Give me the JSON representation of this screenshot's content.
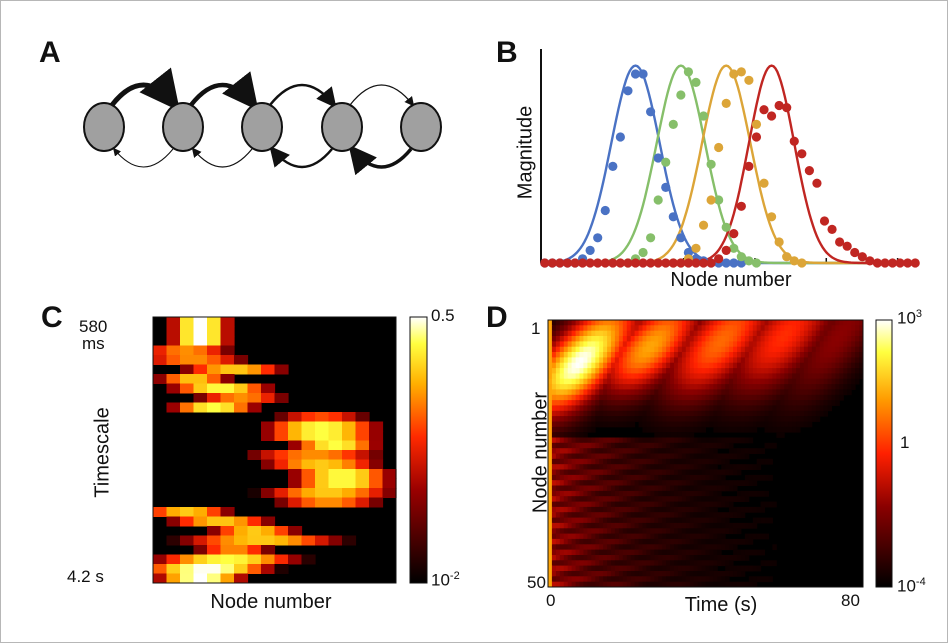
{
  "panels": {
    "a": {
      "letter": "A"
    },
    "b": {
      "letter": "B",
      "ylabel": "Magnitude",
      "xlabel": "Node number"
    },
    "c": {
      "letter": "C",
      "top_tick": "580",
      "top_tick_unit": "ms",
      "bottom_tick": "4.2 s",
      "ylabel": "Timescale",
      "xlabel": "Node number",
      "cbar_max": "0.5",
      "cbar_min_base": "10",
      "cbar_min_exp": "-2"
    },
    "d": {
      "letter": "D",
      "top_tick": "1",
      "bottom_tick": "50",
      "ylabel": "Node number",
      "xlabel": "Time (s)",
      "x_min": "0",
      "x_max": "80",
      "cbar_max_base": "10",
      "cbar_max_exp": "3",
      "cbar_mid": "1",
      "cbar_min_base": "10",
      "cbar_min_exp": "-4"
    }
  },
  "colors": {
    "blue": "#4a72c4",
    "green": "#86bf6a",
    "gold": "#dca538",
    "red": "#c02622"
  },
  "chart_data": [
    {
      "type": "scatter",
      "panel": "B",
      "xlabel": "Node number",
      "ylabel": "Magnitude",
      "note": "four bumps: dots = data, lines = gaussian fits",
      "series": [
        {
          "color": "blue",
          "peak_node": 13,
          "width": 3.2,
          "points": [
            [
              1,
              0
            ],
            [
              2,
              0
            ],
            [
              3,
              0
            ],
            [
              4,
              0
            ],
            [
              5,
              0
            ],
            [
              6,
              0.02
            ],
            [
              7,
              0.06
            ],
            [
              8,
              0.12
            ],
            [
              9,
              0.25
            ],
            [
              10,
              0.46
            ],
            [
              11,
              0.6
            ],
            [
              12,
              0.82
            ],
            [
              13,
              0.9
            ],
            [
              14,
              0.9
            ],
            [
              15,
              0.72
            ],
            [
              16,
              0.5
            ],
            [
              17,
              0.36
            ],
            [
              18,
              0.22
            ],
            [
              19,
              0.12
            ],
            [
              20,
              0.05
            ],
            [
              21,
              0.02
            ],
            [
              22,
              0.01
            ],
            [
              23,
              0
            ],
            [
              24,
              0
            ],
            [
              25,
              0
            ],
            [
              26,
              0
            ],
            [
              27,
              0
            ]
          ]
        },
        {
          "color": "green",
          "peak_node": 19,
          "width": 3.2,
          "points": [
            [
              12,
              0
            ],
            [
              13,
              0.02
            ],
            [
              14,
              0.05
            ],
            [
              15,
              0.12
            ],
            [
              16,
              0.3
            ],
            [
              17,
              0.48
            ],
            [
              18,
              0.66
            ],
            [
              19,
              0.8
            ],
            [
              20,
              0.91
            ],
            [
              21,
              0.86
            ],
            [
              22,
              0.7
            ],
            [
              23,
              0.47
            ],
            [
              24,
              0.3
            ],
            [
              25,
              0.17
            ],
            [
              26,
              0.07
            ],
            [
              27,
              0.03
            ],
            [
              28,
              0.01
            ],
            [
              29,
              0
            ]
          ]
        },
        {
          "color": "gold",
          "peak_node": 25,
          "width": 3.2,
          "points": [
            [
              18,
              0
            ],
            [
              19,
              0
            ],
            [
              20,
              0.02
            ],
            [
              21,
              0.07
            ],
            [
              22,
              0.18
            ],
            [
              23,
              0.3
            ],
            [
              24,
              0.55
            ],
            [
              25,
              0.76
            ],
            [
              26,
              0.9
            ],
            [
              27,
              0.91
            ],
            [
              28,
              0.87
            ],
            [
              29,
              0.66
            ],
            [
              30,
              0.38
            ],
            [
              31,
              0.22
            ],
            [
              32,
              0.1
            ],
            [
              33,
              0.03
            ],
            [
              34,
              0.01
            ],
            [
              35,
              0
            ]
          ]
        },
        {
          "color": "red",
          "peak_node": 31,
          "width": 3.0,
          "points": [
            [
              1,
              0
            ],
            [
              2,
              0
            ],
            [
              3,
              0
            ],
            [
              4,
              0
            ],
            [
              5,
              0
            ],
            [
              6,
              0
            ],
            [
              7,
              0
            ],
            [
              8,
              0
            ],
            [
              9,
              0
            ],
            [
              10,
              0
            ],
            [
              11,
              0
            ],
            [
              12,
              0
            ],
            [
              13,
              0
            ],
            [
              14,
              0
            ],
            [
              15,
              0
            ],
            [
              16,
              0
            ],
            [
              17,
              0
            ],
            [
              18,
              0
            ],
            [
              19,
              0
            ],
            [
              20,
              0
            ],
            [
              21,
              0
            ],
            [
              22,
              0
            ],
            [
              23,
              0
            ],
            [
              24,
              0.02
            ],
            [
              25,
              0.06
            ],
            [
              26,
              0.14
            ],
            [
              27,
              0.27
            ],
            [
              28,
              0.46
            ],
            [
              29,
              0.6
            ],
            [
              30,
              0.73
            ],
            [
              31,
              0.7
            ],
            [
              32,
              0.75
            ],
            [
              33,
              0.74
            ],
            [
              34,
              0.58
            ],
            [
              35,
              0.52
            ],
            [
              36,
              0.44
            ],
            [
              37,
              0.38
            ],
            [
              38,
              0.2
            ],
            [
              39,
              0.16
            ],
            [
              40,
              0.1
            ],
            [
              41,
              0.08
            ],
            [
              42,
              0.05
            ],
            [
              43,
              0.03
            ],
            [
              44,
              0.01
            ],
            [
              45,
              0
            ],
            [
              46,
              0
            ],
            [
              47,
              0
            ],
            [
              48,
              0
            ],
            [
              49,
              0
            ],
            [
              50,
              0
            ]
          ]
        }
      ]
    },
    {
      "type": "heatmap",
      "panel": "C",
      "xlabel": "Node number",
      "ylabel": "Timescale",
      "ytick_top": "580 ms",
      "ytick_bottom": "4.2 s",
      "colorbar": [
        "10^-2",
        "0.5"
      ],
      "rows": [
        [
          2,
          5,
          1
        ],
        [
          2,
          5,
          1
        ],
        [
          2,
          5,
          1
        ],
        [
          0,
          5,
          0.7
        ],
        [
          0,
          6,
          0.7
        ],
        [
          3,
          9,
          0.8
        ],
        [
          1,
          5,
          0.8
        ],
        [
          2,
          8,
          0.9
        ],
        [
          4,
          9,
          0.7
        ],
        [
          2,
          7,
          0.9
        ],
        [
          10,
          15,
          0.6
        ],
        [
          9,
          16,
          0.9
        ],
        [
          9,
          16,
          0.9
        ],
        [
          11,
          16,
          0.9
        ],
        [
          8,
          16,
          0.7
        ],
        [
          9,
          16,
          0.8
        ],
        [
          11,
          17,
          0.9
        ],
        [
          11,
          17,
          0.9
        ],
        [
          9,
          17,
          0.8
        ],
        [
          10,
          16,
          0.7
        ],
        [
          0,
          5,
          0.8
        ],
        [
          2,
          8,
          0.8
        ],
        [
          5,
          10,
          0.8
        ],
        [
          3,
          13,
          0.8
        ],
        [
          4,
          8,
          0.7
        ],
        [
          1,
          10,
          0.9
        ],
        [
          0,
          8,
          1
        ],
        [
          1,
          6,
          1
        ]
      ],
      "n_nodes": 18
    },
    {
      "type": "heatmap",
      "panel": "D",
      "xlabel": "Time (s)",
      "ylabel": "Node number",
      "x_range": [
        0,
        80
      ],
      "y_range": [
        1,
        50
      ],
      "colorbar": [
        "10^-4",
        "1",
        "10^3"
      ],
      "waves": [
        {
          "t_center": 8,
          "t_width": 10,
          "node_center": 8,
          "node_width": 7,
          "level": 1.0
        },
        {
          "t_center": 26,
          "t_width": 10,
          "node_center": 5,
          "node_width": 5,
          "level": 0.72
        },
        {
          "t_center": 44,
          "t_width": 11,
          "node_center": 4,
          "node_width": 5,
          "level": 0.62
        },
        {
          "t_center": 60,
          "t_width": 11,
          "node_center": 3,
          "node_width": 4,
          "level": 0.52
        },
        {
          "t_center": 74,
          "t_width": 9,
          "node_center": 3,
          "node_width": 4,
          "level": 0.3
        }
      ]
    }
  ]
}
